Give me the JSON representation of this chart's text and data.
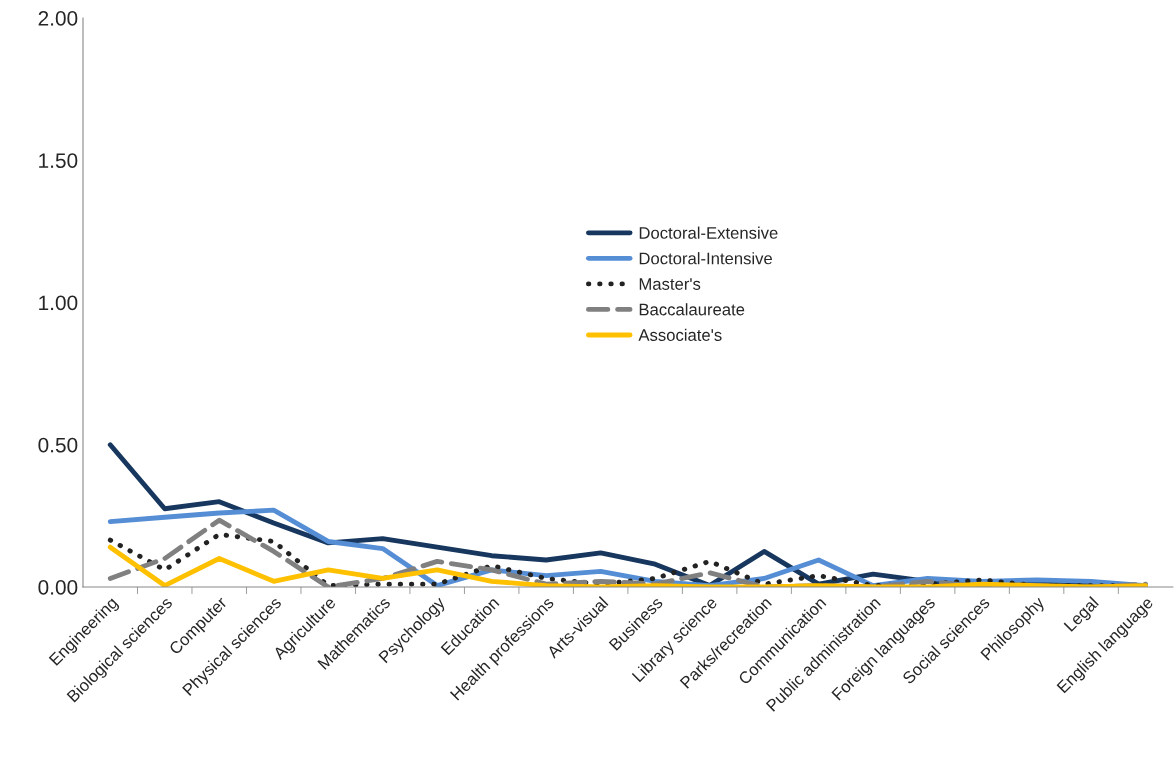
{
  "chart_data": {
    "type": "line",
    "categories": [
      "Engineering",
      "Biological sciences",
      "Computer",
      "Physical sciences",
      "Agriculture",
      "Mathematics",
      "Psychology",
      "Education",
      "Health professions",
      "Arts-visual",
      "Business",
      "Library science",
      "Parks/recreation",
      "Communication",
      "Public administration",
      "Foreign languages",
      "Social sciences",
      "Philosophy",
      "Legal",
      "English language"
    ],
    "series": [
      {
        "name": "Doctoral-Extensive",
        "color": "#17375e",
        "line_style": "solid",
        "values": [
          0.5,
          0.275,
          0.3,
          0.225,
          0.155,
          0.17,
          0.14,
          0.11,
          0.095,
          0.12,
          0.08,
          0.005,
          0.125,
          0.01,
          0.045,
          0.02,
          0.01,
          0.015,
          0.01,
          0.005
        ]
      },
      {
        "name": "Doctoral-Intensive",
        "color": "#558ed5",
        "line_style": "solid",
        "values": [
          0.23,
          0.245,
          0.26,
          0.27,
          0.16,
          0.135,
          0.005,
          0.06,
          0.04,
          0.055,
          0.02,
          0.005,
          0.03,
          0.095,
          0.005,
          0.03,
          0.02,
          0.025,
          0.02,
          0.005
        ]
      },
      {
        "name": "Master's",
        "color": "#222222",
        "line_style": "dotted",
        "values": [
          0.165,
          0.06,
          0.185,
          0.16,
          0.005,
          0.01,
          0.01,
          0.075,
          0.03,
          0.01,
          0.03,
          0.09,
          0.01,
          0.04,
          0.005,
          0.01,
          0.025,
          0.005,
          0.005,
          0.005
        ]
      },
      {
        "name": "Baccalaureate",
        "color": "#808080",
        "line_style": "dashed",
        "values": [
          0.03,
          0.1,
          0.235,
          0.125,
          0.0,
          0.03,
          0.09,
          0.06,
          0.01,
          0.02,
          0.01,
          0.05,
          0.0,
          0.005,
          0.0,
          0.02,
          0.0,
          0.005,
          0.0,
          0.01
        ]
      },
      {
        "name": "Associate's",
        "color": "#ffc000",
        "line_style": "solid",
        "values": [
          0.14,
          0.005,
          0.1,
          0.02,
          0.06,
          0.03,
          0.06,
          0.02,
          0.005,
          0.0,
          0.005,
          0.0,
          0.0,
          0.005,
          0.0,
          0.0,
          0.01,
          0.005,
          0.0,
          0.005
        ]
      }
    ],
    "ylim": [
      0,
      2
    ],
    "yticks": [
      {
        "value": 0,
        "label": "0.00"
      },
      {
        "value": 0.5,
        "label": "0.50"
      },
      {
        "value": 1,
        "label": "1.00"
      },
      {
        "value": 1.5,
        "label": "1.50"
      },
      {
        "value": 2,
        "label": "2.00"
      }
    ],
    "grid": false,
    "legend": "center",
    "marker": "none"
  }
}
